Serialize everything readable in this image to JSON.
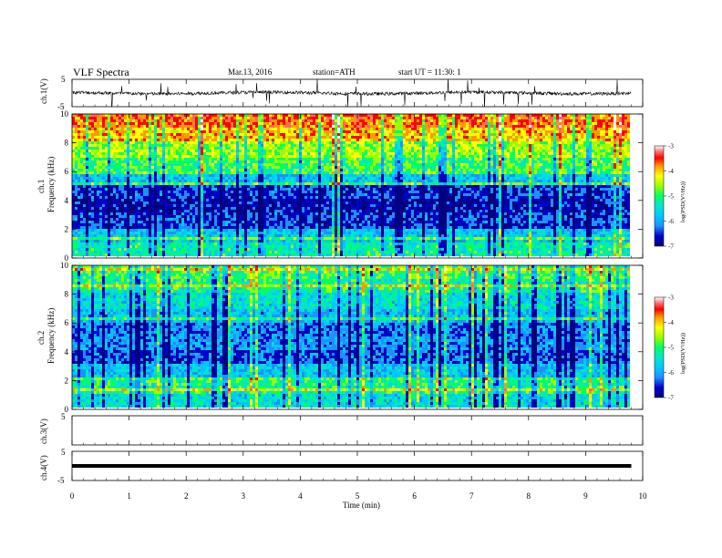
{
  "header": {
    "title": "VLF  Spectra",
    "date": "Mar.13, 2016",
    "station": "station=ATH",
    "start": "start  UT  =    11:30: 1"
  },
  "colors": {
    "spectrum_scale": [
      "#000080",
      "#0000cd",
      "#1e90ff",
      "#00c8ff",
      "#00e5cc",
      "#00ff66",
      "#9aff00",
      "#ffff00",
      "#ff9900",
      "#ff0000",
      "#ff6666",
      "#ffffff"
    ],
    "waveform": "#000000"
  },
  "chart_data": [
    {
      "type": "line",
      "panel": "ch1-waveform",
      "ylabel": "ch.1(V)",
      "ylim": [
        -5,
        5
      ],
      "yticks": [
        "5",
        "-5"
      ],
      "description_of_signal": "noisy trace near 0 V with frequent short spikes",
      "mean_value": 0
    },
    {
      "type": "heatmap",
      "panel": "ch1-spectrogram",
      "ylabel_channel": "ch.1",
      "ylabel": "Frequency  (kHz)",
      "ylim": [
        0,
        10
      ],
      "yticks": [
        "0",
        "2",
        "4",
        "6",
        "8",
        "10"
      ],
      "colorbar_label": "log(PSD(V²/Hz))",
      "colorbar_range": [
        -7,
        -3
      ],
      "colorbar_ticks": [
        "-3",
        "-4",
        "-5",
        "-6",
        "-7"
      ],
      "band_profile": [
        {
          "freq_khz": 0.5,
          "logpsd": -5.4
        },
        {
          "freq_khz": 1.5,
          "logpsd": -5.8
        },
        {
          "freq_khz": 2.5,
          "logpsd": -6.4
        },
        {
          "freq_khz": 3.5,
          "logpsd": -6.6
        },
        {
          "freq_khz": 4.5,
          "logpsd": -6.4
        },
        {
          "freq_khz": 5.5,
          "logpsd": -5.8
        },
        {
          "freq_khz": 6.5,
          "logpsd": -5.1
        },
        {
          "freq_khz": 7.5,
          "logpsd": -4.8
        },
        {
          "freq_khz": 8.5,
          "logpsd": -4.3
        },
        {
          "freq_khz": 9.5,
          "logpsd": -4.0
        }
      ]
    },
    {
      "type": "heatmap",
      "panel": "ch2-spectrogram",
      "ylabel_channel": "ch.2",
      "ylabel": "Frequency  (kHz)",
      "ylim": [
        0,
        10
      ],
      "yticks": [
        "0",
        "2",
        "4",
        "6",
        "8",
        "10"
      ],
      "colorbar_label": "log(PSD(V²/Hz))",
      "colorbar_range": [
        -7,
        -3
      ],
      "colorbar_ticks": [
        "-3",
        "-4",
        "-5",
        "-6",
        "-7"
      ],
      "band_profile": [
        {
          "freq_khz": 0.5,
          "logpsd": -5.6
        },
        {
          "freq_khz": 1.5,
          "logpsd": -5.3
        },
        {
          "freq_khz": 2.5,
          "logpsd": -5.8
        },
        {
          "freq_khz": 3.5,
          "logpsd": -6.3
        },
        {
          "freq_khz": 4.5,
          "logpsd": -6.1
        },
        {
          "freq_khz": 5.5,
          "logpsd": -6.2
        },
        {
          "freq_khz": 6.5,
          "logpsd": -5.9
        },
        {
          "freq_khz": 7.5,
          "logpsd": -5.6
        },
        {
          "freq_khz": 8.5,
          "logpsd": -5.3
        },
        {
          "freq_khz": 9.5,
          "logpsd": -5.1
        }
      ]
    },
    {
      "type": "line",
      "panel": "ch3-waveform",
      "ylabel": "ch.3(V)",
      "ylim": [
        -5,
        5
      ],
      "yticks": [
        "5"
      ],
      "mean_value": null
    },
    {
      "type": "line",
      "panel": "ch4-waveform",
      "ylabel": "ch.4(V)",
      "ylim": [
        -5,
        5
      ],
      "yticks": [
        "5",
        "-5"
      ],
      "mean_value": 0
    }
  ],
  "xaxis": {
    "label": "Time  (min)",
    "xlim": [
      0,
      10
    ],
    "ticks": [
      "0",
      "1",
      "2",
      "3",
      "4",
      "5",
      "6",
      "7",
      "8",
      "9",
      "10"
    ],
    "data_end_min": 9.8
  }
}
